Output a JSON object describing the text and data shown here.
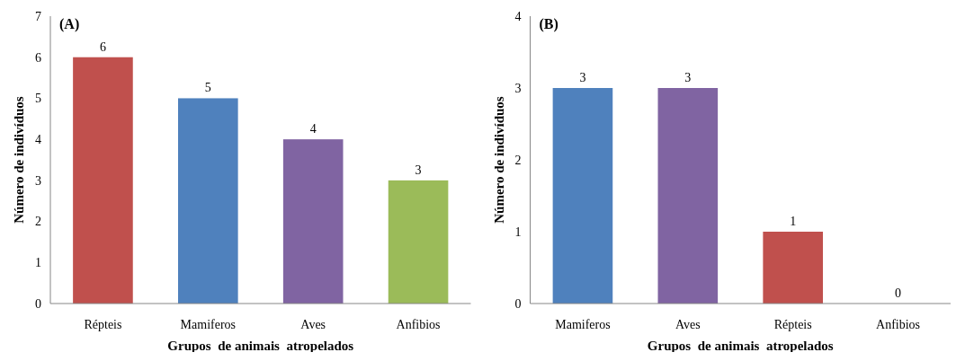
{
  "chart_data": [
    {
      "type": "bar",
      "title": "(A)",
      "xlabel": "Grupos  de animais  atropelados",
      "ylabel": "Número de indivíduos",
      "categories": [
        "Répteis",
        "Mamiferos",
        "Aves",
        "Anfibios"
      ],
      "values": [
        6,
        5,
        4,
        3
      ],
      "colors": [
        "#c0504d",
        "#4f81bd",
        "#8064a2",
        "#9bbb59"
      ],
      "ylim": [
        0,
        7
      ],
      "yticks": [
        0,
        1,
        2,
        3,
        4,
        5,
        6,
        7
      ],
      "data_labels": true,
      "grid": false
    },
    {
      "type": "bar",
      "title": "(B)",
      "xlabel": "Grupos  de animais  atropelados",
      "ylabel": "Número de indivíduos",
      "categories": [
        "Mamiferos",
        "Aves",
        "Répteis",
        "Anfibios"
      ],
      "values": [
        3,
        3,
        1,
        0
      ],
      "colors": [
        "#4f81bd",
        "#8064a2",
        "#c0504d",
        "#9bbb59"
      ],
      "ylim": [
        0,
        4
      ],
      "yticks": [
        0,
        1,
        2,
        3,
        4
      ],
      "data_labels": true,
      "grid": false
    }
  ]
}
